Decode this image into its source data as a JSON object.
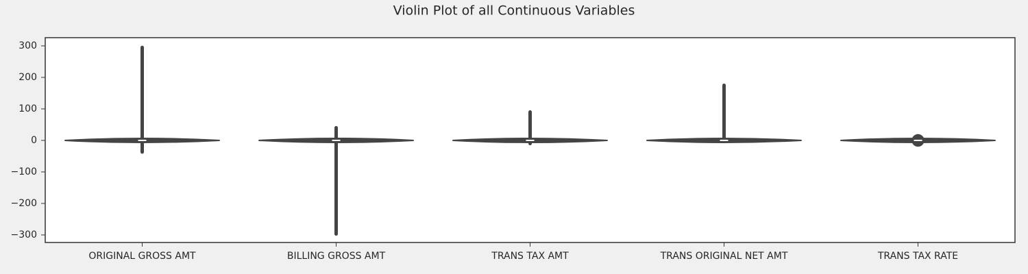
{
  "chart_data": {
    "type": "violin",
    "title": "Violin Plot of all Continuous Variables",
    "categories": [
      "ORIGINAL GROSS AMT",
      "BILLING GROSS AMT",
      "TRANS TAX AMT",
      "TRANS ORIGINAL NET AMT",
      "TRANS TAX RATE"
    ],
    "min": [
      -37,
      -297,
      -10,
      -2,
      0
    ],
    "max": [
      295,
      40,
      90,
      175,
      0
    ],
    "q1": [
      -2,
      -2,
      -2,
      -1,
      -20
    ],
    "median": [
      0,
      0,
      0,
      0,
      0
    ],
    "q3": [
      2,
      2,
      2,
      1,
      20
    ],
    "color": "#444444",
    "ylim": [
      -324,
      326
    ],
    "yticks": [
      {
        "value": -300,
        "label": "−300"
      },
      {
        "value": -200,
        "label": "−200"
      },
      {
        "value": -100,
        "label": "−100"
      },
      0,
      100,
      200,
      300
    ]
  }
}
